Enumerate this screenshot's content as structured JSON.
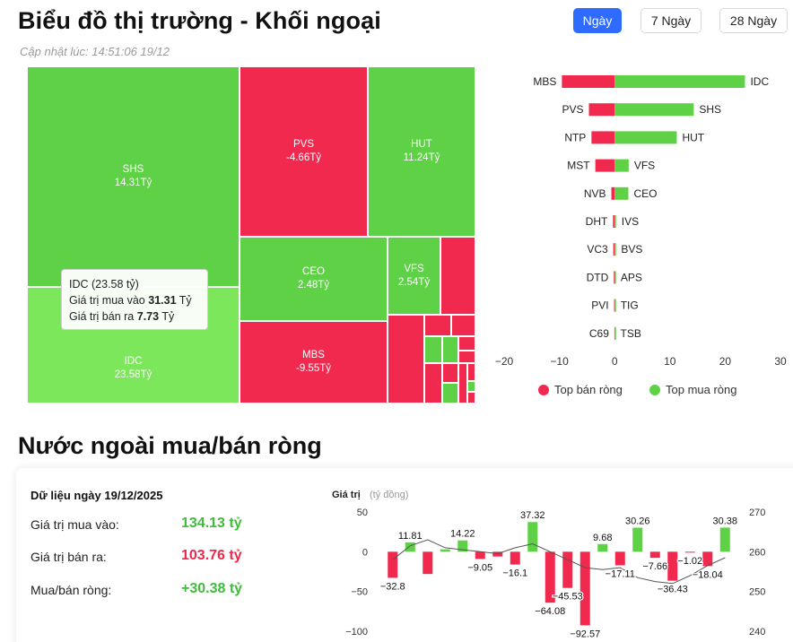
{
  "header": {
    "title": "Biểu đồ thị trường - Khối ngoại",
    "updated": "Cập nhật lúc: 14:51:06 19/12",
    "tabs": [
      {
        "label": "Ngày",
        "active": true
      },
      {
        "label": "7 Ngày",
        "active": false
      },
      {
        "label": "28 Ngày",
        "active": false
      }
    ]
  },
  "colors": {
    "buy": "#5ed147",
    "sell": "#f1294f",
    "accent": "#2f6bff"
  },
  "treemap": {
    "tiles": [
      {
        "code": "SHS",
        "value": "14.31Tỷ"
      },
      {
        "code": "IDC",
        "value": "23.58Tỷ"
      },
      {
        "code": "PVS",
        "value": "-4.66Tỷ"
      },
      {
        "code": "HUT",
        "value": "11.24Tỷ"
      },
      {
        "code": "CEO",
        "value": "2.48Tỷ"
      },
      {
        "code": "VFS",
        "value": "2.54Tỷ"
      },
      {
        "code": "MBS",
        "value": "-9.55Tỷ"
      }
    ],
    "tooltip": {
      "title": "IDC (23.58 tỷ)",
      "buy_label": "Giá trị mua vào",
      "buy_value": "31.31",
      "buy_unit": "Tỷ",
      "sell_label": "Giá trị bán ra",
      "sell_value": "7.73",
      "sell_unit": "Tỷ"
    }
  },
  "chart_data": [
    {
      "type": "bar",
      "orientation": "horizontal",
      "xlim": [
        -20,
        30
      ],
      "x_ticks": [
        "−20",
        "−10",
        "0",
        "10",
        "20",
        "30"
      ],
      "legend": {
        "placement": "bottom",
        "items": [
          "Top bán ròng",
          "Top mua ròng"
        ]
      },
      "sell_series": {
        "name": "Top bán ròng",
        "labels": [
          "MBS",
          "PVS",
          "NTP",
          "MST",
          "NVB",
          "DHT",
          "VC3",
          "DTD",
          "PVI",
          "C69"
        ],
        "values": [
          -9.55,
          -4.66,
          -4.2,
          -3.5,
          -0.6,
          -0.3,
          -0.25,
          -0.15,
          -0.1,
          -0.05
        ]
      },
      "buy_series": {
        "name": "Top mua ròng",
        "labels": [
          "IDC",
          "SHS",
          "HUT",
          "VFS",
          "CEO",
          "IVS",
          "BVS",
          "APS",
          "TIG",
          "TSB"
        ],
        "values": [
          23.58,
          14.31,
          11.24,
          2.54,
          2.48,
          0.25,
          0.2,
          0.1,
          0.08,
          0.05
        ]
      }
    },
    {
      "type": "bar",
      "ylabel": "Giá trị",
      "yunit": "(tỷ đồng)",
      "ylim": [
        -100,
        50
      ],
      "y_ticks": [
        "50",
        "0",
        "−50",
        "−100"
      ],
      "y2lim": [
        240,
        270
      ],
      "y2_ticks": [
        "270",
        "260",
        "250",
        "240"
      ],
      "values": [
        -32.8,
        11.81,
        -28,
        3,
        14.22,
        -9.05,
        -6,
        -16.1,
        37.32,
        -64.08,
        -45.53,
        -92.57,
        9.68,
        -17.11,
        30.26,
        -7.66,
        -36.43,
        -1.02,
        -18.04,
        30.38
      ],
      "value_labels": [
        "−32.8",
        "11.81",
        "",
        "",
        "14.22",
        "−9.05",
        "",
        "−16.1",
        "37.32",
        "−64.08",
        "−45.53",
        "−92.57",
        "9.68",
        "−17.11",
        "30.26",
        "−7.66",
        "−36.43",
        "−1.02",
        "−18.04",
        "30.38"
      ],
      "line_series": [
        258,
        261.5,
        263,
        261,
        260.5,
        260,
        259.5,
        261,
        262,
        260,
        258,
        256,
        255.5,
        256,
        253.5,
        252.5,
        252,
        254,
        256.5,
        258.5
      ]
    }
  ],
  "summary": {
    "heading": "Nước ngoài mua/bán ròng",
    "date_label": "Dữ liệu ngày 19/12/2025",
    "rows": [
      {
        "label": "Giá trị mua vào:",
        "value": "134.13 tỷ"
      },
      {
        "label": "Giá trị bán ra:",
        "value": "103.76 tỷ"
      },
      {
        "label": "Mua/bán ròng:",
        "value": "+30.38 tỷ"
      }
    ]
  }
}
